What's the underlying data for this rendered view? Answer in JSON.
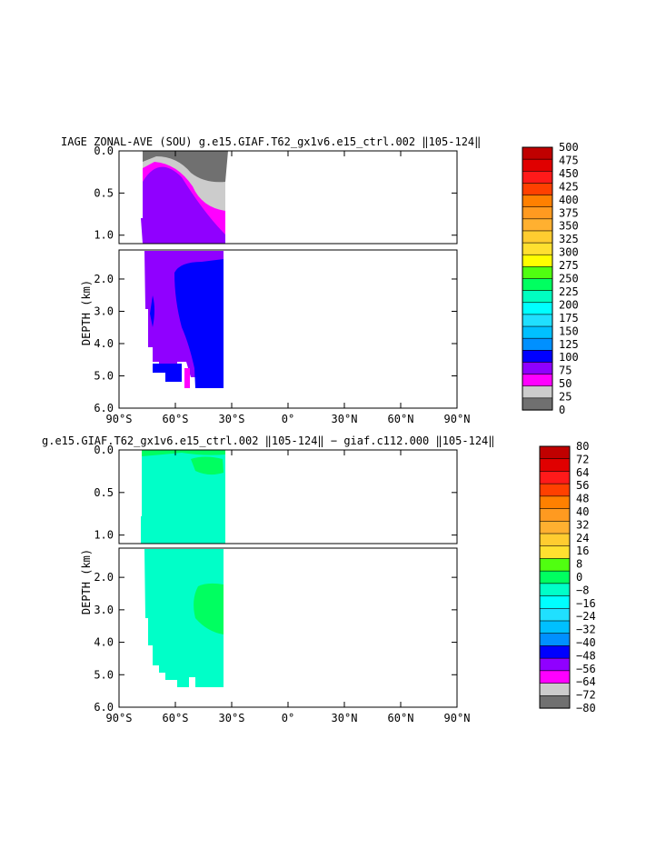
{
  "chart_data": [
    {
      "type": "heatmap",
      "title": "IAGE ZONAL-AVE (SOU) g.e15.GIAF.T62_gx1v6.e15_ctrl.002 ‖105-124‖",
      "ylabel": "DEPTH (km)",
      "x_ticks": [
        "90°S",
        "60°S",
        "30°S",
        "0°",
        "30°N",
        "60°N",
        "90°N"
      ],
      "y_ticks_upper": [
        "0.0",
        "0.5",
        "1.0"
      ],
      "y_ticks_lower": [
        "2.0",
        "3.0",
        "4.0",
        "5.0",
        "6.0"
      ],
      "xlim": [
        -90,
        90
      ],
      "ylim_upper": [
        0.0,
        1.1
      ],
      "ylim_lower": [
        1.1,
        6.0
      ],
      "colorbar": {
        "labels": [
          "500",
          "475",
          "450",
          "425",
          "400",
          "375",
          "350",
          "325",
          "300",
          "275",
          "250",
          "225",
          "200",
          "175",
          "150",
          "125",
          "100",
          "75",
          "50",
          "25",
          "0"
        ],
        "colors": [
          "#c00000",
          "#e00000",
          "#ff1a1a",
          "#ff4000",
          "#ff8000",
          "#ff9a20",
          "#ffb030",
          "#ffcc30",
          "#ffe030",
          "#ffff00",
          "#50ff10",
          "#00ff60",
          "#00ffc0",
          "#00ffff",
          "#20e0ff",
          "#00c0ff",
          "#0090ff",
          "#0000ff",
          "#9000ff",
          "#ff00ff",
          "#cccccc",
          "#707070"
        ]
      }
    },
    {
      "type": "heatmap",
      "title": "g.e15.GIAF.T62_gx1v6.e15_ctrl.002 ‖105-124‖ − giaf.c112.000 ‖105-124‖",
      "ylabel": "DEPTH (km)",
      "x_ticks": [
        "90°S",
        "60°S",
        "30°S",
        "0°",
        "30°N",
        "60°N",
        "90°N"
      ],
      "y_ticks_upper": [
        "0.0",
        "0.5",
        "1.0"
      ],
      "y_ticks_lower": [
        "2.0",
        "3.0",
        "4.0",
        "5.0",
        "6.0"
      ],
      "xlim": [
        -90,
        90
      ],
      "ylim_upper": [
        0.0,
        1.1
      ],
      "ylim_lower": [
        1.1,
        6.0
      ],
      "colorbar": {
        "labels": [
          "80",
          "72",
          "64",
          "56",
          "48",
          "40",
          "32",
          "24",
          "16",
          "8",
          "0",
          "−8",
          "−16",
          "−24",
          "−32",
          "−40",
          "−48",
          "−56",
          "−64",
          "−72",
          "−80"
        ],
        "colors": [
          "#c00000",
          "#e00000",
          "#ff1a1a",
          "#ff4000",
          "#ff8000",
          "#ff9a20",
          "#ffb030",
          "#ffcc30",
          "#ffe030",
          "#50ff10",
          "#00ff60",
          "#00ffc8",
          "#00ffff",
          "#20e0ff",
          "#00c0ff",
          "#0090ff",
          "#0000ff",
          "#9000ff",
          "#ff00ff",
          "#cccccc",
          "#707070"
        ]
      }
    }
  ]
}
